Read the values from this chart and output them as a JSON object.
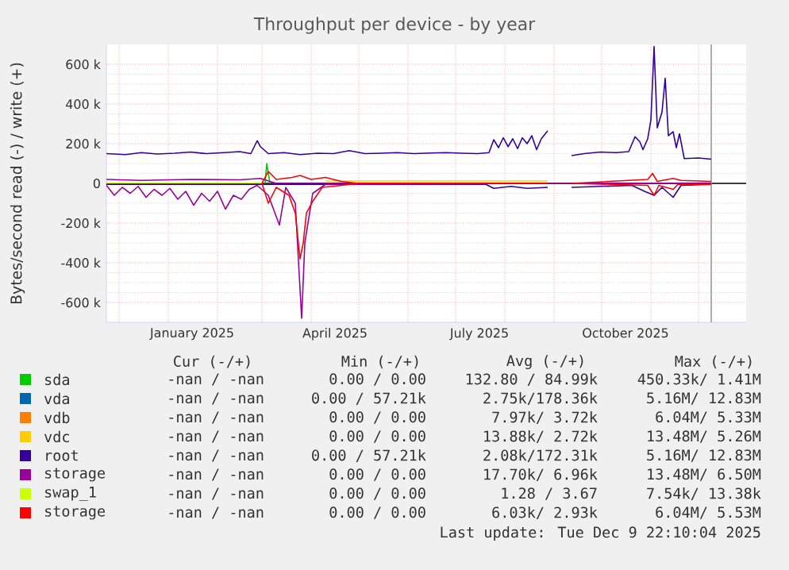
{
  "chart_data": {
    "type": "line",
    "title": "Throughput per device - by year",
    "ylabel": "Bytes/second read (-) / write (+)",
    "xlim": [
      "2024-11-23",
      "2025-12-31"
    ],
    "ylim": [
      -700000,
      700000
    ],
    "xticks": [
      {
        "value": "2024-12-01",
        "label": null
      },
      {
        "value": "2025-01-01",
        "label": null
      },
      {
        "value": "2025-02-01",
        "label": null
      },
      {
        "value": "2025-03-01",
        "label": null
      },
      {
        "value": "2025-04-01",
        "label": null
      },
      {
        "value": "2025-05-01",
        "label": null
      },
      {
        "value": "2025-06-01",
        "label": null
      },
      {
        "value": "2025-07-01",
        "label": null
      },
      {
        "value": "2025-08-01",
        "label": null
      },
      {
        "value": "2025-09-01",
        "label": null
      },
      {
        "value": "2025-10-01",
        "label": null
      },
      {
        "value": "2025-11-01",
        "label": null
      },
      {
        "value": "2025-12-01",
        "label": null
      },
      {
        "value": "2025-01-16",
        "label": "January 2025"
      },
      {
        "value": "2025-04-16",
        "label": "April 2025"
      },
      {
        "value": "2025-07-16",
        "label": "July 2025"
      },
      {
        "value": "2025-10-16",
        "label": "October 2025"
      }
    ],
    "yticks": [
      {
        "value": -600000,
        "label": "-600 k"
      },
      {
        "value": -400000,
        "label": "-400 k"
      },
      {
        "value": -200000,
        "label": "-200 k"
      },
      0,
      {
        "value": 200000,
        "label": "200 k"
      },
      {
        "value": 400000,
        "label": "400 k"
      },
      {
        "value": 600000,
        "label": "600 k"
      }
    ],
    "grid": true,
    "legend": "bottom",
    "ref_lines": [
      {
        "axis": "y",
        "value": 0,
        "color": "#000000"
      },
      {
        "axis": "x",
        "value": "2025-12-09",
        "color": "#999999"
      }
    ],
    "series": [
      {
        "name": "sda",
        "color": "#00cc00",
        "x": [
          "2025-03-03",
          "2025-03-04",
          "2025-03-06"
        ],
        "values": [
          0,
          100000,
          0
        ]
      },
      {
        "name": "vda",
        "color": "#0066b3"
      },
      {
        "name": "vdb",
        "color": "#ff8000"
      },
      {
        "name": "vdc",
        "color": "#ffcc00",
        "x": [
          "2025-04-10",
          "2025-06-01",
          "2025-08-28"
        ],
        "values": [
          12000,
          12000,
          12000
        ]
      },
      {
        "name": "root",
        "color": "#330099",
        "x": [
          "2024-11-23",
          "2024-12-05",
          "2024-12-15",
          "2024-12-25",
          "2025-01-05",
          "2025-01-15",
          "2025-01-25",
          "2025-02-05",
          "2025-02-15",
          "2025-02-22",
          "2025-02-26",
          "2025-02-28",
          "2025-03-05",
          "2025-03-15",
          "2025-03-25",
          "2025-04-05",
          "2025-04-15",
          "2025-04-25",
          "2025-05-05",
          "2025-05-15",
          "2025-05-25",
          "2025-06-05",
          "2025-06-15",
          "2025-06-25",
          "2025-07-05",
          "2025-07-15",
          "2025-07-22",
          "2025-07-25",
          "2025-07-28",
          "2025-07-31",
          "2025-08-03",
          "2025-08-06",
          "2025-08-09",
          "2025-08-12",
          "2025-08-15",
          "2025-08-18",
          "2025-08-21",
          "2025-08-24",
          "2025-08-28",
          "2025-09-05",
          "2025-09-12",
          "2025-09-20",
          "2025-09-30",
          "2025-10-10",
          "2025-10-18",
          "2025-10-22",
          "2025-10-25",
          "2025-10-27",
          "2025-10-30",
          "2025-11-01",
          "2025-11-03",
          "2025-11-05",
          "2025-11-08",
          "2025-11-10",
          "2025-11-12",
          "2025-11-15",
          "2025-11-17",
          "2025-11-19",
          "2025-11-22",
          "2025-12-01",
          "2025-12-09"
        ],
        "values": [
          150000,
          145000,
          155000,
          148000,
          152000,
          158000,
          150000,
          155000,
          160000,
          150000,
          215000,
          185000,
          150000,
          155000,
          145000,
          152000,
          150000,
          165000,
          150000,
          152000,
          155000,
          150000,
          153000,
          155000,
          152000,
          150000,
          155000,
          220000,
          180000,
          230000,
          185000,
          225000,
          175000,
          230000,
          200000,
          240000,
          170000,
          225000,
          265000,
          null,
          140000,
          150000,
          158000,
          155000,
          160000,
          235000,
          210000,
          170000,
          225000,
          320000,
          690000,
          280000,
          360000,
          530000,
          240000,
          260000,
          180000,
          250000,
          125000,
          128000,
          122000
        ]
      },
      {
        "name": "storage",
        "color": "#990099",
        "x": [
          "2024-11-23",
          "2024-12-15",
          "2025-01-15",
          "2025-02-15",
          "2025-02-28",
          "2025-03-10",
          "2025-12-09"
        ],
        "values": [
          20000,
          15000,
          20000,
          18000,
          25000,
          0,
          0
        ]
      },
      {
        "name": "swap_1",
        "color": "#ccff00",
        "x": [
          "2024-11-23",
          "2025-01-15",
          "2025-03-01"
        ],
        "values": [
          2000,
          2000,
          2000
        ]
      },
      {
        "name": "storage",
        "color": "#ff0000",
        "x": [
          "2025-03-01",
          "2025-03-05",
          "2025-03-10",
          "2025-03-20",
          "2025-03-25",
          "2025-04-01",
          "2025-04-10",
          "2025-04-20",
          "2025-05-01",
          "2025-08-28",
          "2025-09-05",
          "2025-09-12",
          "2025-10-30",
          "2025-11-02",
          "2025-11-05",
          "2025-11-15",
          "2025-11-20",
          "2025-12-09"
        ],
        "values": [
          0,
          60000,
          20000,
          30000,
          40000,
          20000,
          30000,
          10000,
          0,
          0,
          null,
          0,
          20000,
          50000,
          10000,
          25000,
          15000,
          10000
        ]
      },
      {
        "color": "#330099",
        "x": [
          "2024-11-23",
          "2025-07-20",
          "2025-07-25",
          "2025-08-05",
          "2025-08-15",
          "2025-08-28",
          "2025-09-05",
          "2025-09-12",
          "2025-10-20",
          "2025-10-28",
          "2025-11-03",
          "2025-11-08",
          "2025-11-15",
          "2025-11-20",
          "2025-12-09"
        ],
        "values": [
          -5000,
          -5000,
          -25000,
          -15000,
          -25000,
          -20000,
          null,
          -20000,
          -10000,
          -40000,
          -60000,
          -20000,
          -70000,
          -10000,
          -5000
        ]
      },
      {
        "color": "#990099",
        "x": [
          "2024-11-23",
          "2024-11-28",
          "2024-12-03",
          "2024-12-08",
          "2024-12-13",
          "2024-12-18",
          "2024-12-23",
          "2024-12-28",
          "2025-01-02",
          "2025-01-07",
          "2025-01-12",
          "2025-01-17",
          "2025-01-22",
          "2025-01-27",
          "2025-02-01",
          "2025-02-06",
          "2025-02-11",
          "2025-02-16",
          "2025-02-21",
          "2025-02-26",
          "2025-03-05",
          "2025-03-12",
          "2025-03-16",
          "2025-03-22",
          "2025-03-26",
          "2025-03-28",
          "2025-04-02",
          "2025-04-10",
          "2025-08-28",
          "2025-09-05",
          "2025-09-12",
          "2025-12-09"
        ],
        "values": [
          -10000,
          -60000,
          -20000,
          -50000,
          -15000,
          -70000,
          -30000,
          -60000,
          -25000,
          -80000,
          -40000,
          -110000,
          -50000,
          -90000,
          -40000,
          -130000,
          -60000,
          -80000,
          -30000,
          -10000,
          -60000,
          -210000,
          -20000,
          -100000,
          -680000,
          -300000,
          -50000,
          -5000,
          0,
          null,
          0,
          0
        ]
      },
      {
        "color": "#ff0000",
        "x": [
          "2025-03-01",
          "2025-03-05",
          "2025-03-10",
          "2025-03-18",
          "2025-03-22",
          "2025-03-25",
          "2025-03-27",
          "2025-03-29",
          "2025-04-02",
          "2025-04-08",
          "2025-04-20",
          "2025-05-01",
          "2025-08-28",
          "2025-09-05",
          "2025-09-12",
          "2025-10-30",
          "2025-11-03",
          "2025-11-06",
          "2025-11-15",
          "2025-11-18",
          "2025-12-09"
        ],
        "values": [
          0,
          -100000,
          -20000,
          -60000,
          -150000,
          -380000,
          -300000,
          -150000,
          -90000,
          -20000,
          -10000,
          0,
          0,
          null,
          0,
          -10000,
          -60000,
          -10000,
          -30000,
          -5000,
          -5000
        ]
      }
    ],
    "annotations": [
      "Cur (-/+)",
      "Min (-/+)",
      "Avg (-/+)",
      "Max (-/+)",
      "-nan / -nan",
      "0.00 / 0.00",
      "132.80 / 84.99k",
      "450.33k/ 1.41M",
      "-nan / -nan",
      "0.00 / 57.21k",
      "2.75k/178.36k",
      "5.16M/ 12.83M",
      "-nan / -nan",
      "0.00 / 0.00",
      "7.97k/ 3.72k",
      "6.04M/ 5.33M",
      "-nan / -nan",
      "0.00 / 0.00",
      "13.88k/ 2.72k",
      "13.48M/ 5.26M",
      "-nan / -nan",
      "0.00 / 57.21k",
      "2.08k/172.31k",
      "5.16M/ 12.83M",
      "-nan / -nan",
      "0.00 / 0.00",
      "17.70k/ 6.96k",
      "13.48M/ 6.50M",
      "-nan / -nan",
      "0.00 / 0.00",
      "1.28 / 3.67",
      "7.54k/ 13.38k",
      "-nan / -nan",
      "0.00 / 0.00",
      "6.03k/ 2.93k",
      "6.04M/ 5.53M",
      "Last update: Tue Dec 9 22:10:04 2025"
    ]
  }
}
